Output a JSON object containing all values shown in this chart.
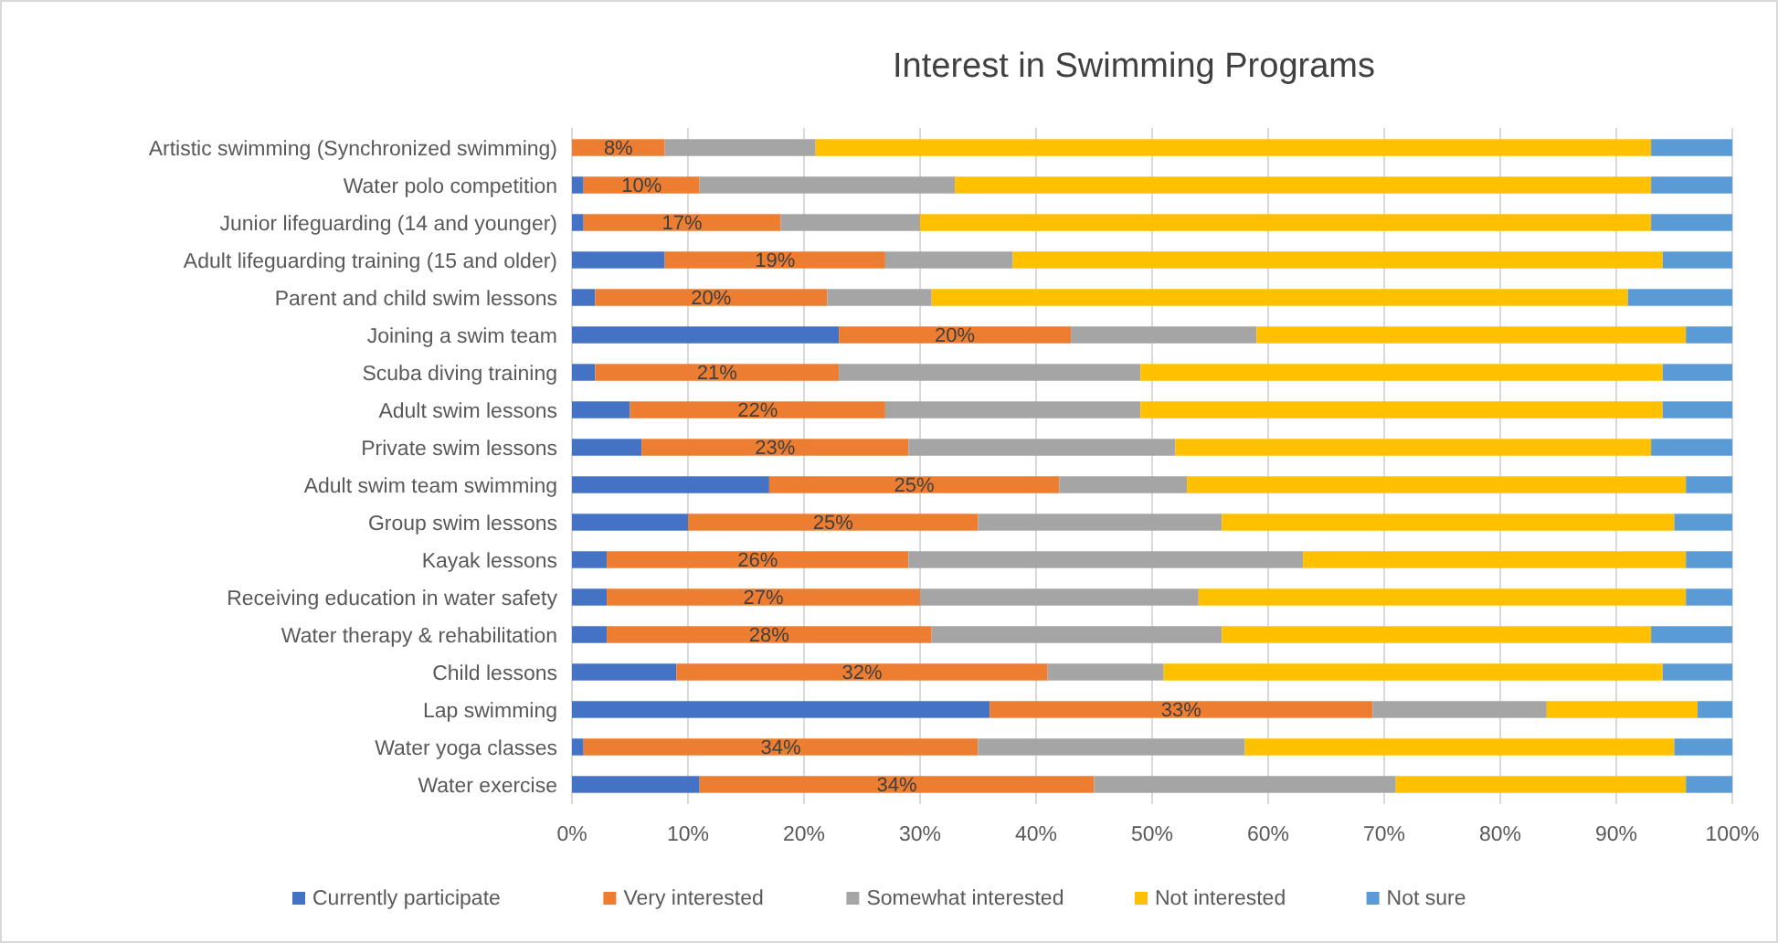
{
  "chart_data": {
    "type": "bar",
    "orientation": "horizontal",
    "stacked": true,
    "title": "Interest in Swimming Programs",
    "categories": [
      "Artistic swimming (Synchronized swimming)",
      "Water polo competition",
      "Junior lifeguarding (14 and younger)",
      "Adult lifeguarding training (15 and older)",
      "Parent and child swim lessons",
      "Joining a swim team",
      "Scuba diving training",
      "Adult swim lessons",
      "Private swim lessons",
      "Adult swim team swimming",
      "Group swim lessons",
      "Kayak lessons",
      "Receiving education in water safety",
      "Water therapy & rehabilitation",
      "Child lessons",
      "Lap swimming",
      "Water yoga classes",
      "Water exercise"
    ],
    "series": [
      {
        "name": "Currently participate",
        "color": "#4472c4",
        "values": [
          0,
          1,
          1,
          8,
          2,
          23,
          2,
          5,
          6,
          17,
          10,
          3,
          3,
          3,
          9,
          36,
          1,
          11
        ]
      },
      {
        "name": "Very interested",
        "color": "#ed7d31",
        "values": [
          8,
          10,
          17,
          19,
          20,
          20,
          21,
          22,
          23,
          25,
          25,
          26,
          27,
          28,
          32,
          33,
          34,
          34
        ],
        "value_labels": [
          "8%",
          "10%",
          "17%",
          "19%",
          "20%",
          "20%",
          "21%",
          "22%",
          "23%",
          "25%",
          "25%",
          "26%",
          "27%",
          "28%",
          "32%",
          "33%",
          "34%",
          "34%"
        ]
      },
      {
        "name": "Somewhat interested",
        "color": "#a5a5a5",
        "values": [
          13,
          22,
          12,
          11,
          9,
          16,
          26,
          22,
          23,
          11,
          21,
          34,
          24,
          25,
          10,
          15,
          23,
          26
        ]
      },
      {
        "name": "Not interested",
        "color": "#ffc000",
        "values": [
          72,
          60,
          63,
          56,
          60,
          37,
          45,
          45,
          41,
          43,
          39,
          33,
          42,
          37,
          43,
          13,
          37,
          25
        ]
      },
      {
        "name": "Not sure",
        "color": "#5b9bd5",
        "values": [
          7,
          7,
          7,
          6,
          9,
          4,
          6,
          6,
          7,
          4,
          5,
          4,
          4,
          7,
          6,
          3,
          5,
          4
        ]
      }
    ],
    "xlim": [
      0,
      100
    ],
    "xticks": [
      {
        "value": 0,
        "label": "0%"
      },
      {
        "value": 10,
        "label": "10%"
      },
      {
        "value": 20,
        "label": "20%"
      },
      {
        "value": 30,
        "label": "30%"
      },
      {
        "value": 40,
        "label": "40%"
      },
      {
        "value": 50,
        "label": "50%"
      },
      {
        "value": 60,
        "label": "60%"
      },
      {
        "value": 70,
        "label": "70%"
      },
      {
        "value": 80,
        "label": "80%"
      },
      {
        "value": 90,
        "label": "90%"
      },
      {
        "value": 100,
        "label": "100%"
      }
    ],
    "grid": "x",
    "legend": "bottom"
  }
}
